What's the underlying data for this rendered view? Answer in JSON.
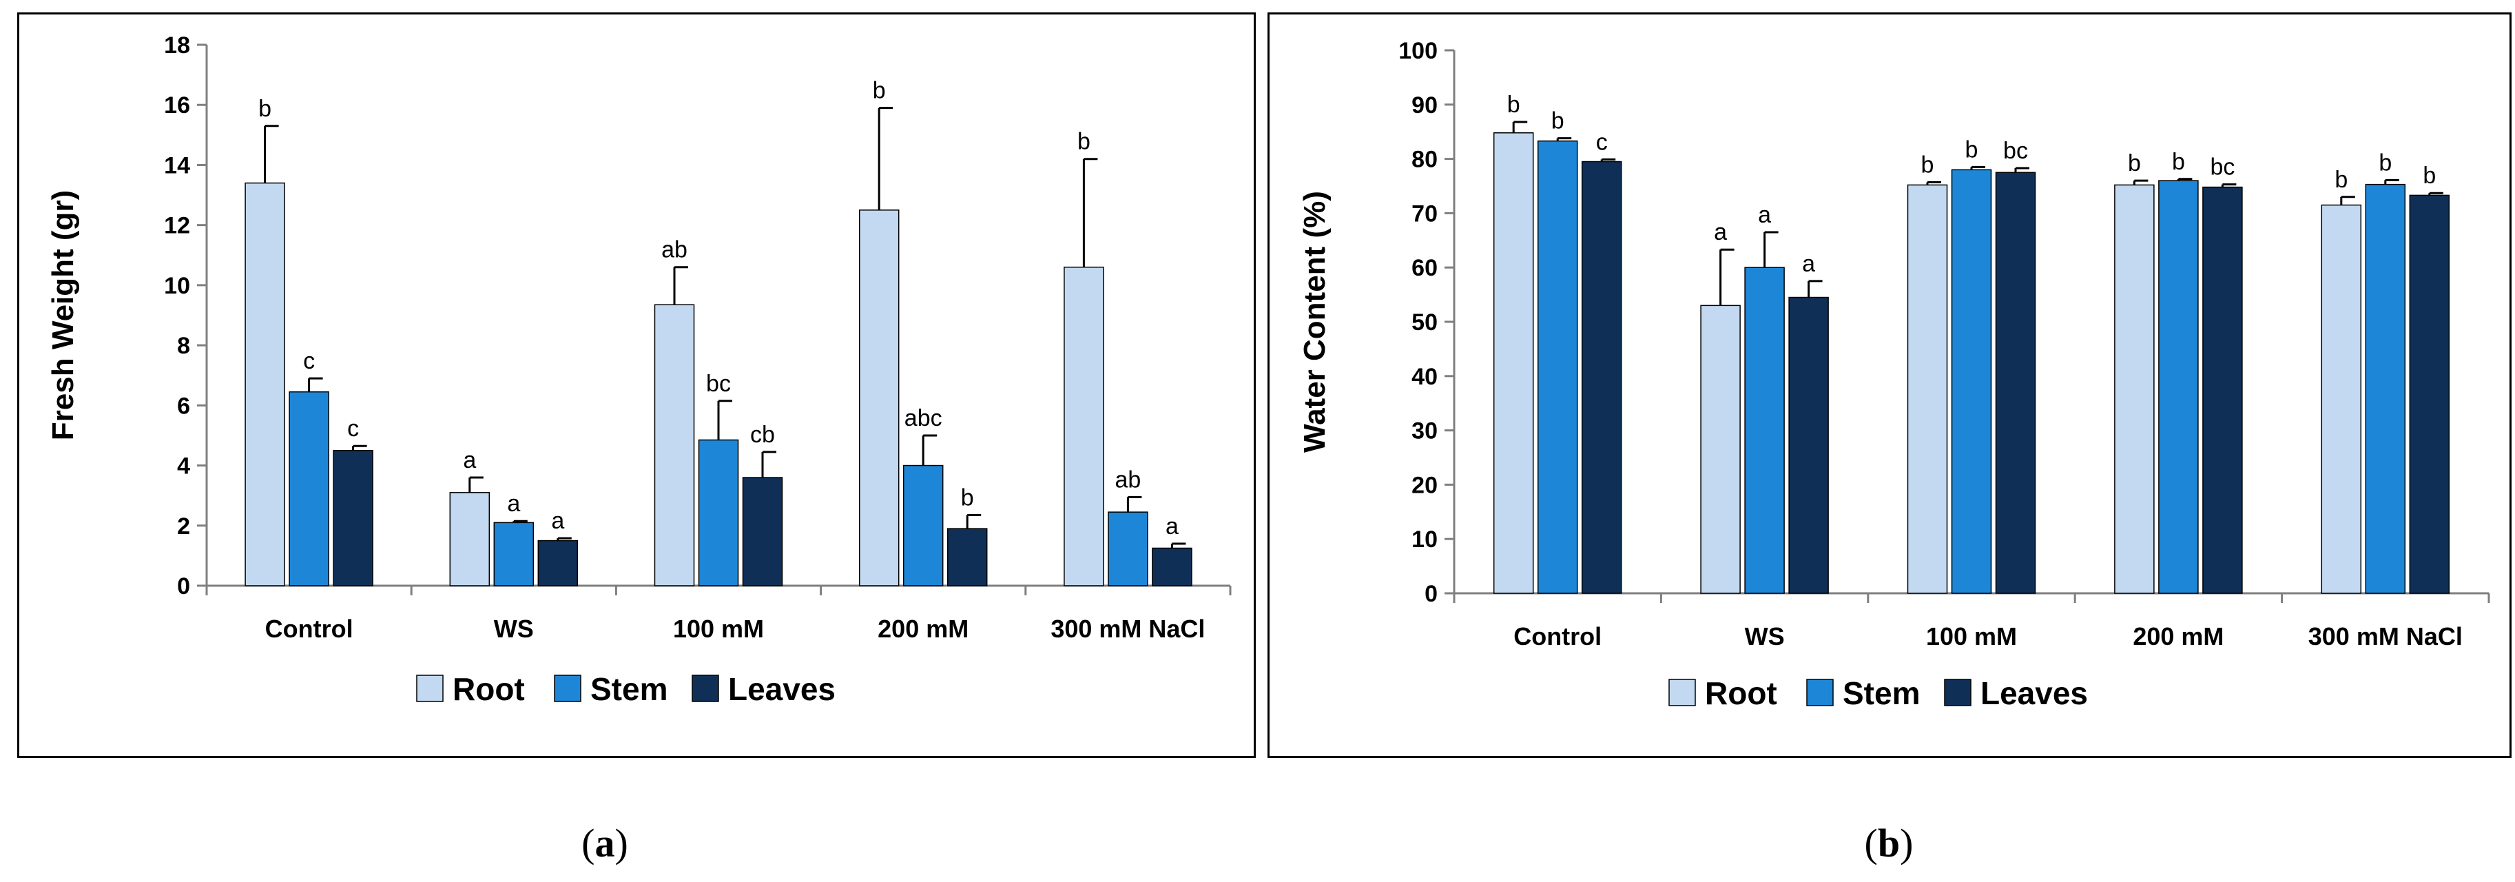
{
  "chart_data": [
    {
      "type": "bar",
      "panel_label": "a",
      "ylabel": "Fresh Weight (gr)",
      "xlabel": "",
      "ylim": [
        0,
        18
      ],
      "yticks": [
        0,
        2,
        4,
        6,
        8,
        10,
        12,
        14,
        16,
        18
      ],
      "grid": false,
      "legend": "bottom",
      "categories": [
        "Control",
        "WS",
        "100 mM",
        "200 mM",
        "300 mM NaCl"
      ],
      "series": [
        {
          "name": "Root",
          "color": "#c3d9f1",
          "values": [
            13.4,
            3.1,
            9.35,
            12.5,
            10.6
          ],
          "errors": [
            1.9,
            0.5,
            1.25,
            3.4,
            3.6
          ],
          "labels": [
            "b",
            "a",
            "ab",
            "b",
            "b"
          ]
        },
        {
          "name": "Stem",
          "color": "#1e86d6",
          "values": [
            6.45,
            2.1,
            4.85,
            4.0,
            2.45
          ],
          "errors": [
            0.45,
            0.05,
            1.3,
            1.0,
            0.5
          ],
          "labels": [
            "c",
            "a",
            "bc",
            "abc",
            "ab"
          ]
        },
        {
          "name": "Leaves",
          "color": "#0f2f56",
          "values": [
            4.5,
            1.5,
            3.6,
            1.9,
            1.25
          ],
          "errors": [
            0.15,
            0.08,
            0.85,
            0.45,
            0.15
          ],
          "labels": [
            "c",
            "a",
            "cb",
            "b",
            "a"
          ]
        }
      ]
    },
    {
      "type": "bar",
      "panel_label": "b",
      "ylabel": "Water Content (%)",
      "xlabel": "",
      "ylim": [
        0,
        100
      ],
      "yticks": [
        0,
        10,
        20,
        30,
        40,
        50,
        60,
        70,
        80,
        90,
        100
      ],
      "grid": false,
      "legend": "bottom",
      "categories": [
        "Control",
        "WS",
        "100 mM",
        "200 mM",
        "300 mM NaCl"
      ],
      "series": [
        {
          "name": "Root",
          "color": "#c3d9f1",
          "values": [
            84.8,
            53.0,
            75.2,
            75.2,
            71.5
          ],
          "errors": [
            2.0,
            10.3,
            0.5,
            0.8,
            1.5
          ],
          "labels": [
            "b",
            "a",
            "b",
            "b",
            "b"
          ]
        },
        {
          "name": "Stem",
          "color": "#1e86d6",
          "values": [
            83.3,
            60.0,
            78.0,
            76.0,
            75.3
          ],
          "errors": [
            0.5,
            6.5,
            0.5,
            0.3,
            0.8
          ],
          "labels": [
            "b",
            "a",
            "b",
            "b",
            "b"
          ]
        },
        {
          "name": "Leaves",
          "color": "#0f2f56",
          "values": [
            79.5,
            54.5,
            77.5,
            74.8,
            73.3
          ],
          "errors": [
            0.4,
            3.0,
            0.8,
            0.5,
            0.4
          ],
          "labels": [
            "c",
            "a",
            "bc",
            "bc",
            "b"
          ]
        }
      ]
    }
  ],
  "captions": [
    "a",
    "b"
  ]
}
